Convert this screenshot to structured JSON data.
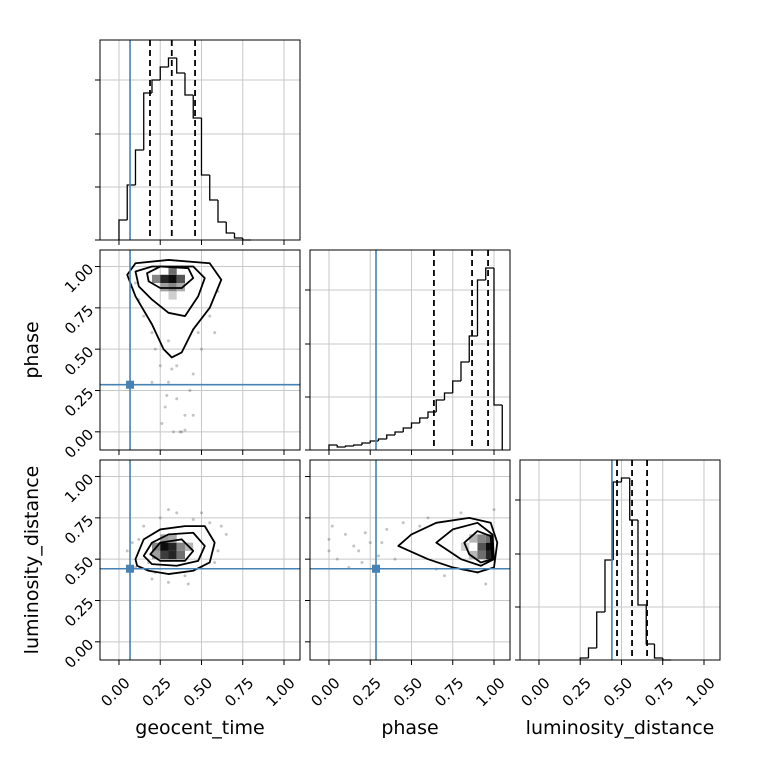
{
  "chart_data": {
    "type": "corner",
    "parameters": [
      "geocent_time",
      "phase",
      "luminosity_distance"
    ],
    "xlim": [
      -0.115,
      1.097
    ],
    "ylim": [
      -0.11,
      1.1
    ],
    "xticks": [
      {
        "value": 0,
        "label": "0.00"
      },
      {
        "value": 0.25,
        "label": "0.25"
      },
      {
        "value": 0.5,
        "label": "0.50"
      },
      {
        "value": 0.75,
        "label": "0.75"
      },
      {
        "value": 1,
        "label": "1.00"
      }
    ],
    "yticks": [
      {
        "value": 0,
        "label": "0.00"
      },
      {
        "value": 0.25,
        "label": "0.25"
      },
      {
        "value": 0.5,
        "label": "0.50"
      },
      {
        "value": 0.75,
        "label": "0.75"
      },
      {
        "value": 1,
        "label": "1.00"
      }
    ],
    "grid": true,
    "truth_color": "#4682b4",
    "truths": [
      0.067,
      0.285,
      0.442
    ],
    "quantiles": [
      [
        0.188,
        0.32,
        0.461
      ],
      [
        0.636,
        0.867,
        0.964
      ],
      [
        0.473,
        0.564,
        0.655
      ]
    ],
    "hist_ylim": [
      0,
      200
    ],
    "hist_yticks": [
      0,
      53,
      106,
      160
    ],
    "histograms": [
      {
        "bins": [
          0,
          0.05,
          0.1,
          0.15,
          0.2,
          0.25,
          0.3,
          0.35,
          0.4,
          0.45,
          0.5,
          0.55,
          0.6,
          0.65,
          0.7,
          0.75,
          0.8
        ],
        "counts": [
          20,
          55,
          90,
          147,
          160,
          173,
          182,
          167,
          145,
          122,
          65,
          40,
          18,
          7,
          2,
          0
        ]
      },
      {
        "bins": [
          0,
          0.05,
          0.1,
          0.15,
          0.2,
          0.25,
          0.3,
          0.35,
          0.4,
          0.45,
          0.5,
          0.55,
          0.6,
          0.65,
          0.7,
          0.75,
          0.8,
          0.85,
          0.9,
          0.95,
          1.0,
          1.05
        ],
        "counts": [
          5,
          3,
          4,
          5,
          7,
          9,
          11,
          15,
          18,
          22,
          27,
          32,
          38,
          50,
          57,
          69,
          88,
          114,
          170,
          182,
          45
        ]
      },
      {
        "bins": [
          0.25,
          0.3,
          0.35,
          0.4,
          0.45,
          0.5,
          0.55,
          0.6,
          0.65,
          0.7,
          0.75,
          0.8
        ],
        "counts": [
          2,
          12,
          48,
          100,
          178,
          182,
          140,
          55,
          16,
          2,
          0
        ]
      }
    ],
    "pairs": [
      {
        "col": 0,
        "row": 1,
        "points": {
          "x": [
            0.12,
            0.2,
            0.25,
            0.3,
            0.35,
            0.4,
            0.45,
            0.5,
            0.55,
            0.6,
            0.15,
            0.22,
            0.28,
            0.33,
            0.38,
            0.43,
            0.48,
            0.3,
            0.35,
            0.26,
            0.4,
            0.32,
            0.45,
            0.2,
            0.58,
            0.1,
            0.37,
            0.29
          ],
          "y": [
            0.8,
            0.6,
            0.4,
            0.3,
            0.2,
            0.1,
            0.35,
            0.5,
            0.7,
            0.85,
            0.7,
            0.5,
            0.15,
            0.0,
            0.0,
            0.25,
            0.6,
            0.55,
            0.4,
            0.05,
            0.01,
            0.38,
            0.1,
            0.3,
            0.6,
            0.9,
            0.0,
            0.22
          ]
        },
        "density": {
          "x": [
            0.2,
            0.25,
            0.3,
            0.35,
            0.25,
            0.3,
            0.35,
            0.3,
            0.3
          ],
          "y": [
            0.9,
            0.9,
            0.9,
            0.9,
            0.85,
            0.85,
            0.85,
            0.8,
            0.95
          ],
          "v": [
            0.5,
            0.9,
            1,
            0.7,
            0.4,
            0.5,
            0.35,
            0.2,
            0.6
          ]
        },
        "contours": [
          {
            "x": [
              0.05,
              0.1,
              0.3,
              0.55,
              0.62,
              0.55,
              0.45,
              0.38,
              0.32,
              0.27,
              0.2,
              0.1
            ],
            "y": [
              0.95,
              1.02,
              1.04,
              1.02,
              0.92,
              0.75,
              0.62,
              0.48,
              0.45,
              0.5,
              0.65,
              0.82
            ]
          },
          {
            "x": [
              0.1,
              0.2,
              0.45,
              0.52,
              0.48,
              0.4,
              0.3,
              0.2,
              0.12
            ],
            "y": [
              0.97,
              1.0,
              1.0,
              0.93,
              0.82,
              0.7,
              0.72,
              0.8,
              0.88
            ]
          },
          {
            "x": [
              0.17,
              0.25,
              0.42,
              0.45,
              0.38,
              0.25,
              0.18
            ],
            "y": [
              0.96,
              1.0,
              0.99,
              0.93,
              0.87,
              0.87,
              0.91
            ]
          }
        ]
      },
      {
        "col": 0,
        "row": 2,
        "points": {
          "x": [
            0.05,
            0.1,
            0.15,
            0.2,
            0.25,
            0.3,
            0.35,
            0.4,
            0.45,
            0.5,
            0.55,
            0.6,
            0.65,
            0.12,
            0.18,
            0.42,
            0.58,
            0.3,
            0.22,
            0.5,
            0.08,
            0.62
          ],
          "y": [
            0.55,
            0.45,
            0.7,
            0.38,
            0.75,
            0.36,
            0.78,
            0.4,
            0.74,
            0.45,
            0.72,
            0.55,
            0.65,
            0.62,
            0.48,
            0.35,
            0.48,
            0.8,
            0.42,
            0.78,
            0.6,
            0.7
          ]
        },
        "density": {
          "x": [
            0.2,
            0.25,
            0.3,
            0.35,
            0.2,
            0.25,
            0.3,
            0.35,
            0.4,
            0.25,
            0.3
          ],
          "y": [
            0.5,
            0.5,
            0.5,
            0.5,
            0.55,
            0.55,
            0.55,
            0.55,
            0.55,
            0.6,
            0.6
          ],
          "v": [
            0.4,
            0.8,
            0.9,
            0.6,
            0.5,
            1,
            0.9,
            0.5,
            0.3,
            0.4,
            0.35
          ]
        },
        "contours": [
          {
            "x": [
              0.1,
              0.15,
              0.25,
              0.4,
              0.52,
              0.58,
              0.55,
              0.45,
              0.3,
              0.18,
              0.11
            ],
            "y": [
              0.5,
              0.62,
              0.68,
              0.7,
              0.7,
              0.6,
              0.48,
              0.43,
              0.41,
              0.43,
              0.46
            ]
          },
          {
            "x": [
              0.15,
              0.2,
              0.3,
              0.45,
              0.52,
              0.48,
              0.35,
              0.2
            ],
            "y": [
              0.52,
              0.6,
              0.65,
              0.66,
              0.58,
              0.49,
              0.46,
              0.47
            ]
          },
          {
            "x": [
              0.19,
              0.25,
              0.38,
              0.45,
              0.4,
              0.25
            ],
            "y": [
              0.53,
              0.6,
              0.62,
              0.55,
              0.49,
              0.49
            ]
          }
        ]
      },
      {
        "col": 1,
        "row": 2,
        "points": {
          "x": [
            0.0,
            0.0,
            0.05,
            0.1,
            0.15,
            0.2,
            0.25,
            0.3,
            0.35,
            0.02,
            0.12,
            0.22,
            0.4,
            0.45,
            0.6,
            0.7,
            0.8,
            0.95,
            1.0,
            0.65,
            0.9,
            0.55,
            0.18,
            0.32
          ],
          "y": [
            0.62,
            0.55,
            0.5,
            0.65,
            0.58,
            0.48,
            0.6,
            0.52,
            0.68,
            0.7,
            0.45,
            0.66,
            0.5,
            0.72,
            0.75,
            0.4,
            0.78,
            0.35,
            0.8,
            0.44,
            0.42,
            0.7,
            0.55,
            0.6
          ]
        },
        "density": {
          "x": [
            0.85,
            0.9,
            0.95,
            0.9,
            0.95,
            0.8,
            0.85,
            0.9,
            0.95
          ],
          "y": [
            0.5,
            0.5,
            0.5,
            0.55,
            0.55,
            0.55,
            0.6,
            0.6,
            0.6
          ],
          "v": [
            0.3,
            0.6,
            0.9,
            0.7,
            1,
            0.2,
            0.3,
            0.5,
            0.6
          ]
        },
        "contours": [
          {
            "x": [
              0.42,
              0.5,
              0.65,
              0.85,
              0.98,
              1.02,
              1.0,
              0.9,
              0.75,
              0.6
            ],
            "y": [
              0.58,
              0.65,
              0.72,
              0.75,
              0.72,
              0.6,
              0.45,
              0.42,
              0.45,
              0.5
            ]
          },
          {
            "x": [
              0.65,
              0.75,
              0.9,
              0.99,
              1.0,
              0.92,
              0.8
            ],
            "y": [
              0.6,
              0.68,
              0.72,
              0.65,
              0.5,
              0.46,
              0.5
            ]
          },
          {
            "x": [
              0.82,
              0.9,
              0.98,
              0.99,
              0.92,
              0.85
            ],
            "y": [
              0.6,
              0.67,
              0.64,
              0.5,
              0.48,
              0.53
            ]
          }
        ]
      }
    ]
  }
}
